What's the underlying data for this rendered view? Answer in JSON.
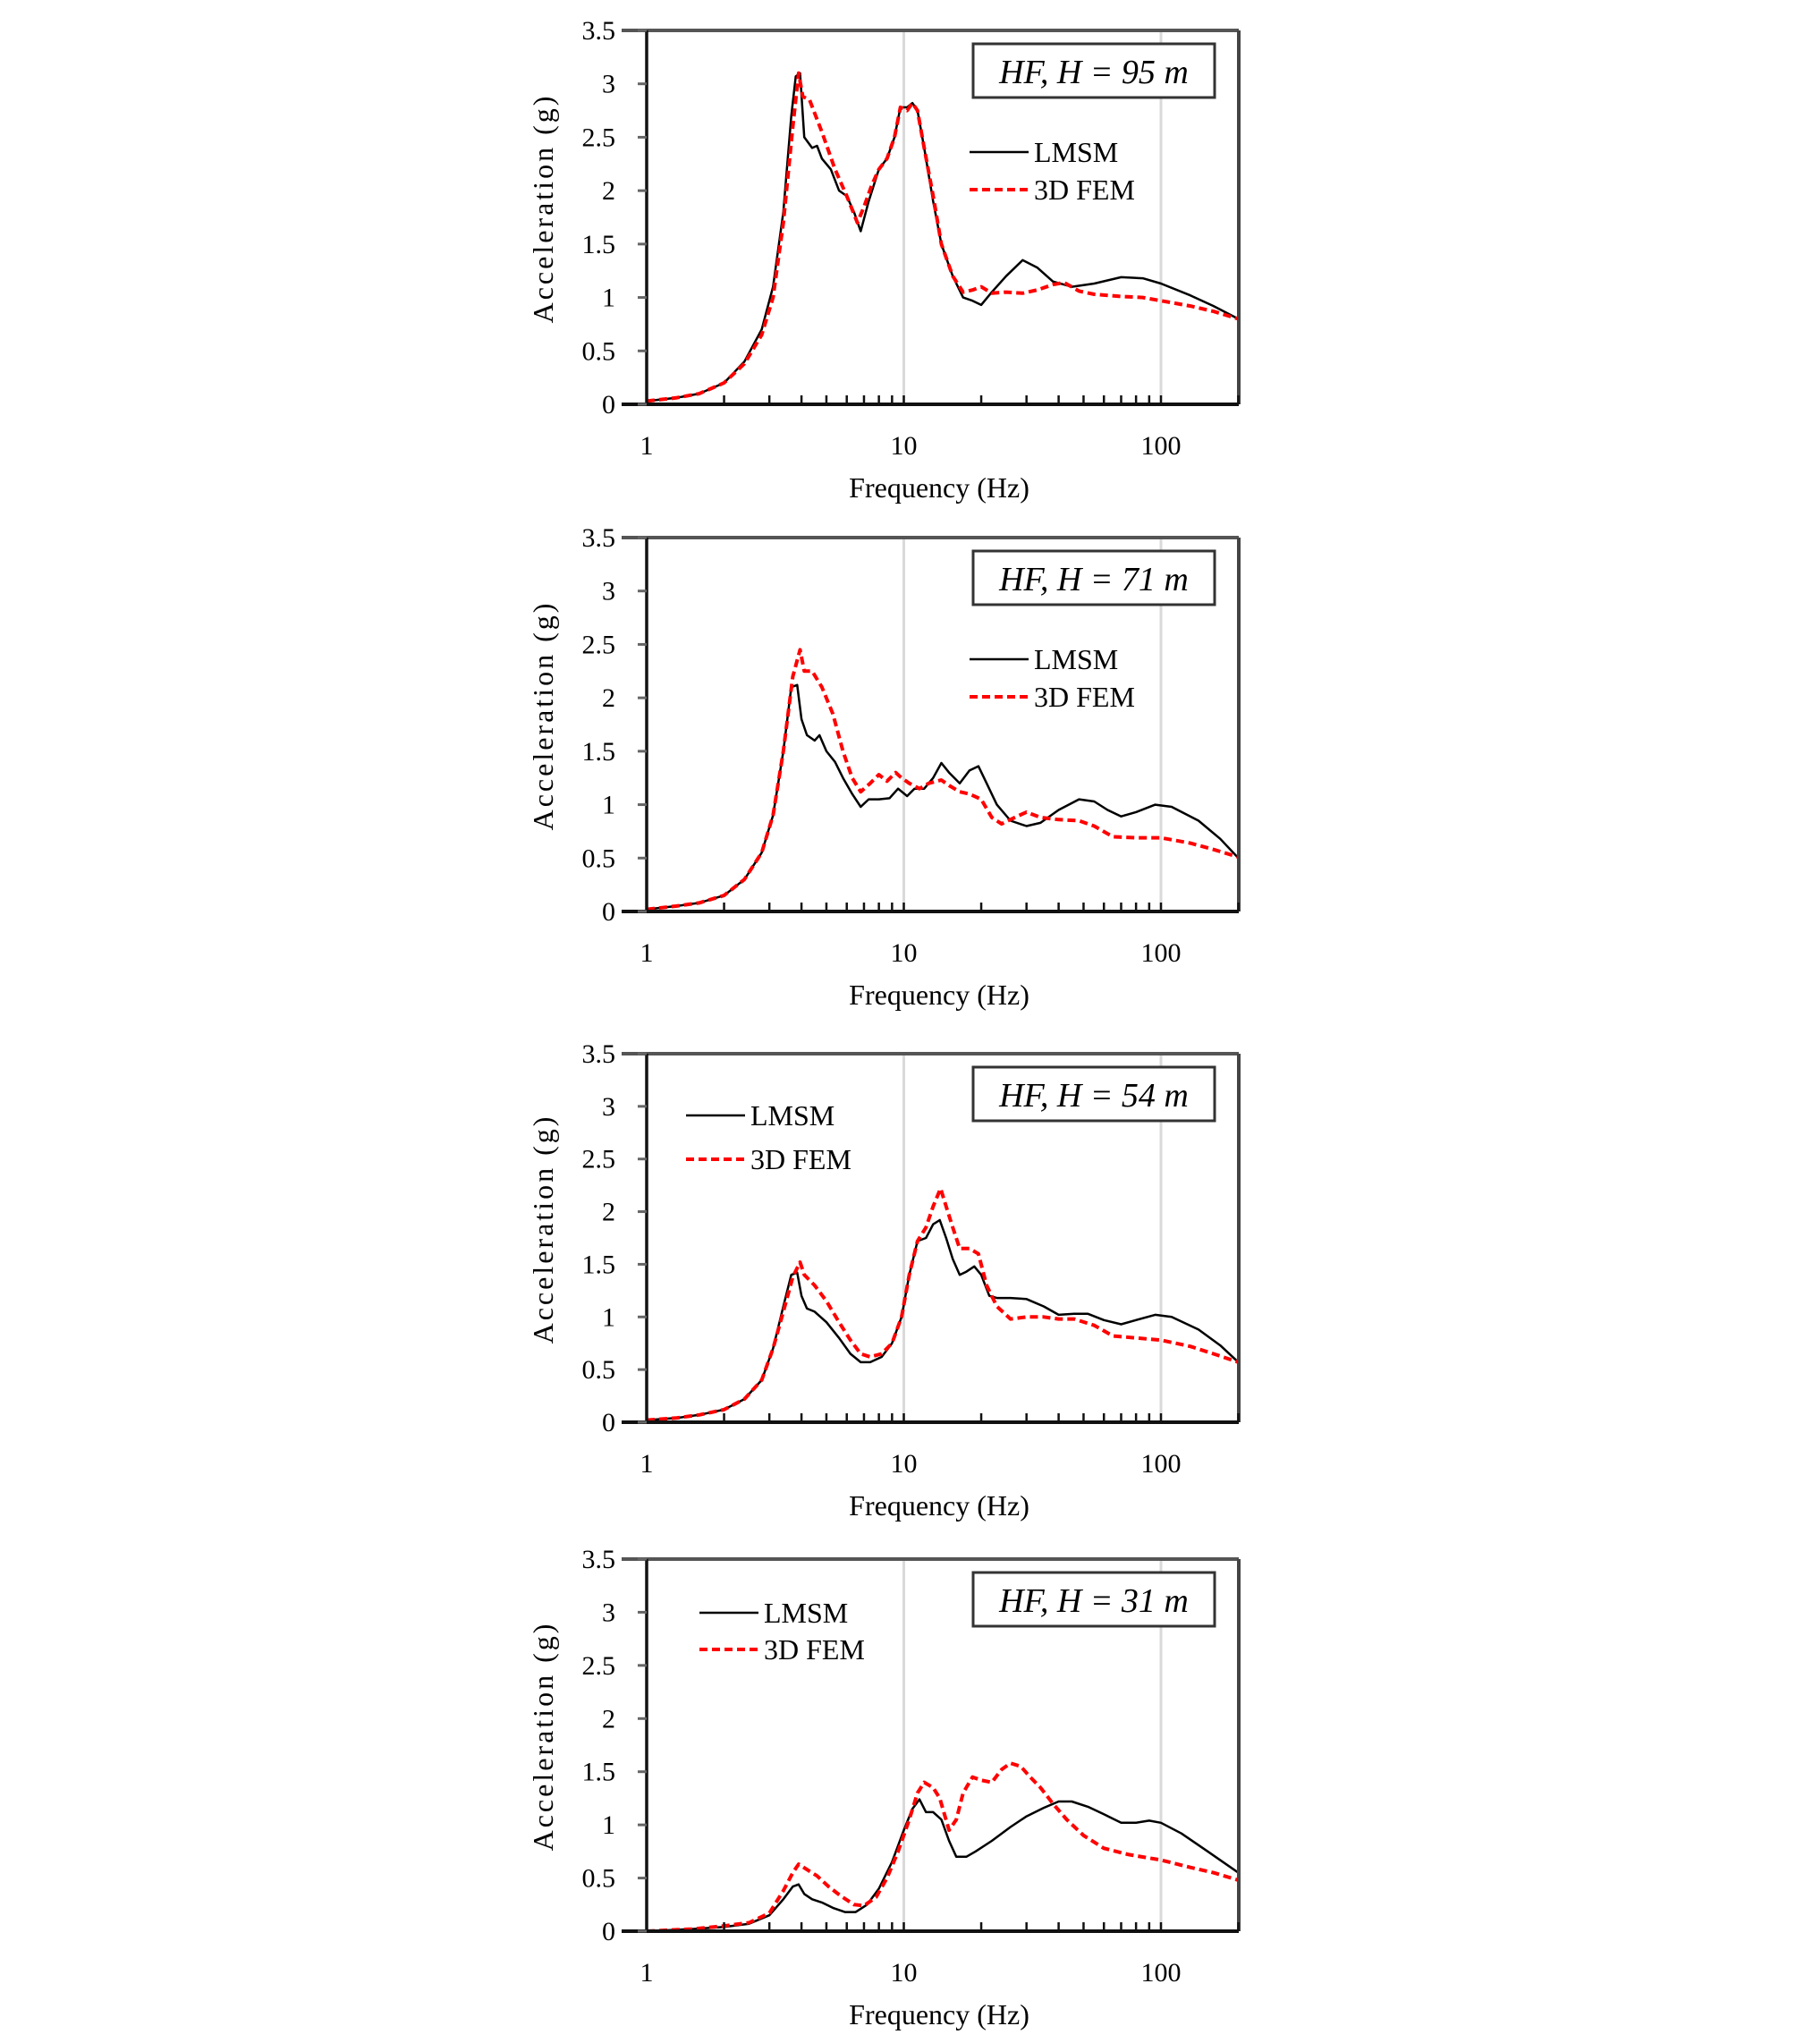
{
  "figure": {
    "panels_count": 4,
    "colors": {
      "lmsm": "#000000",
      "fem": "#ff0000",
      "frame": "#222222",
      "grid": "#d9d9d9"
    }
  },
  "chart_data": [
    {
      "type": "line",
      "title": "HF, H = 95 m",
      "xlabel": "Frequency (Hz)",
      "ylabel": "Acceleration (g)",
      "xscale": "log",
      "xlim": [
        1,
        200
      ],
      "ylim": [
        0,
        3.5
      ],
      "xticks": [
        "1",
        "10",
        "100"
      ],
      "yticks": [
        "0",
        "0.5",
        "1",
        "1.5",
        "2",
        "2.5",
        "3",
        "3.5"
      ],
      "grid": "vertical at decades",
      "legend": {
        "position": "upper right",
        "entries": [
          "LMSM",
          "3D FEM"
        ]
      },
      "series": [
        {
          "name": "LMSM",
          "style": "solid",
          "x": [
            1,
            1.3,
            1.6,
            2,
            2.4,
            2.8,
            3.1,
            3.4,
            3.65,
            3.8,
            3.95,
            4.1,
            4.4,
            4.6,
            4.8,
            5.2,
            5.6,
            6.0,
            6.4,
            6.8,
            7.3,
            8.0,
            8.6,
            9.2,
            9.7,
            10.3,
            10.8,
            11.3,
            12,
            13,
            14,
            15.5,
            17,
            18.5,
            20,
            22,
            25,
            29,
            33,
            38,
            45,
            55,
            70,
            85,
            100,
            130,
            160,
            200
          ],
          "y": [
            0.03,
            0.06,
            0.1,
            0.2,
            0.4,
            0.7,
            1.1,
            1.8,
            2.7,
            3.07,
            3.1,
            2.5,
            2.4,
            2.42,
            2.3,
            2.2,
            2.0,
            1.95,
            1.8,
            1.62,
            1.9,
            2.2,
            2.3,
            2.5,
            2.78,
            2.78,
            2.82,
            2.75,
            2.4,
            1.9,
            1.5,
            1.2,
            1.0,
            0.97,
            0.93,
            1.05,
            1.2,
            1.35,
            1.28,
            1.15,
            1.1,
            1.13,
            1.19,
            1.18,
            1.13,
            1.02,
            0.92,
            0.8
          ]
        },
        {
          "name": "3D FEM",
          "style": "dashed",
          "x": [
            1,
            1.3,
            1.6,
            2,
            2.4,
            2.8,
            3.1,
            3.4,
            3.7,
            3.9,
            4.05,
            4.3,
            4.8,
            5.4,
            6.0,
            6.6,
            7.0,
            7.5,
            8.0,
            8.6,
            9.2,
            9.7,
            10.3,
            10.8,
            11.3,
            12,
            13,
            14,
            15.5,
            17,
            18.5,
            20,
            22,
            25,
            29,
            33,
            38,
            42,
            48,
            55,
            70,
            85,
            100,
            130,
            160,
            200
          ],
          "y": [
            0.03,
            0.06,
            0.1,
            0.2,
            0.38,
            0.65,
            1.0,
            1.7,
            2.6,
            3.1,
            2.88,
            2.85,
            2.55,
            2.2,
            1.95,
            1.7,
            1.85,
            2.05,
            2.2,
            2.3,
            2.5,
            2.78,
            2.75,
            2.82,
            2.75,
            2.4,
            1.95,
            1.5,
            1.2,
            1.05,
            1.07,
            1.1,
            1.04,
            1.05,
            1.04,
            1.07,
            1.12,
            1.14,
            1.06,
            1.03,
            1.01,
            1.0,
            0.97,
            0.92,
            0.87,
            0.8
          ]
        }
      ]
    },
    {
      "type": "line",
      "title": "HF, H = 71 m",
      "xlabel": "Frequency (Hz)",
      "ylabel": "Acceleration (g)",
      "xscale": "log",
      "xlim": [
        1,
        200
      ],
      "ylim": [
        0,
        3.5
      ],
      "xticks": [
        "1",
        "10",
        "100"
      ],
      "yticks": [
        "0",
        "0.5",
        "1",
        "1.5",
        "2",
        "2.5",
        "3",
        "3.5"
      ],
      "grid": "vertical at decades",
      "legend": {
        "position": "upper right",
        "entries": [
          "LMSM",
          "3D FEM"
        ]
      },
      "series": [
        {
          "name": "LMSM",
          "style": "solid",
          "x": [
            1,
            1.3,
            1.6,
            2,
            2.4,
            2.8,
            3.1,
            3.4,
            3.65,
            3.85,
            4.0,
            4.2,
            4.5,
            4.7,
            5.0,
            5.4,
            5.8,
            6.3,
            6.8,
            7.3,
            8.0,
            8.8,
            9.5,
            10.3,
            11,
            12,
            13,
            14,
            15,
            16.5,
            18,
            19.5,
            21,
            23,
            26,
            30,
            34,
            40,
            48,
            55,
            62,
            70,
            80,
            95,
            110,
            140,
            170,
            200
          ],
          "y": [
            0.02,
            0.05,
            0.08,
            0.15,
            0.3,
            0.55,
            0.9,
            1.5,
            2.1,
            2.12,
            1.8,
            1.65,
            1.6,
            1.65,
            1.5,
            1.4,
            1.25,
            1.1,
            0.98,
            1.05,
            1.05,
            1.06,
            1.15,
            1.08,
            1.15,
            1.15,
            1.25,
            1.39,
            1.3,
            1.2,
            1.32,
            1.36,
            1.2,
            1.0,
            0.85,
            0.8,
            0.83,
            0.95,
            1.05,
            1.03,
            0.95,
            0.89,
            0.93,
            1.0,
            0.98,
            0.85,
            0.68,
            0.5
          ]
        },
        {
          "name": "3D FEM",
          "style": "dashed",
          "x": [
            1,
            1.3,
            1.6,
            2,
            2.4,
            2.8,
            3.1,
            3.4,
            3.7,
            3.95,
            4.1,
            4.4,
            4.8,
            5.3,
            5.8,
            6.3,
            6.8,
            7.4,
            8.0,
            8.6,
            9.3,
            9.8,
            10.5,
            11.5,
            12.5,
            14,
            15,
            16.5,
            18,
            20,
            22,
            24,
            27,
            30,
            34,
            40,
            48,
            55,
            65,
            80,
            100,
            130,
            160,
            200
          ],
          "y": [
            0.02,
            0.05,
            0.08,
            0.15,
            0.3,
            0.55,
            0.9,
            1.5,
            2.2,
            2.45,
            2.25,
            2.25,
            2.1,
            1.85,
            1.5,
            1.25,
            1.12,
            1.2,
            1.28,
            1.22,
            1.3,
            1.25,
            1.2,
            1.15,
            1.2,
            1.23,
            1.18,
            1.12,
            1.1,
            1.05,
            0.88,
            0.82,
            0.88,
            0.93,
            0.88,
            0.86,
            0.85,
            0.8,
            0.7,
            0.69,
            0.69,
            0.64,
            0.58,
            0.51
          ]
        }
      ]
    },
    {
      "type": "line",
      "title": "HF, H = 54 m",
      "xlabel": "Frequency (Hz)",
      "ylabel": "Acceleration (g)",
      "xscale": "log",
      "xlim": [
        1,
        200
      ],
      "ylim": [
        0,
        3.5
      ],
      "xticks": [
        "1",
        "10",
        "100"
      ],
      "yticks": [
        "0",
        "0.5",
        "1",
        "1.5",
        "2",
        "2.5",
        "3",
        "3.5"
      ],
      "grid": "vertical at decades",
      "legend": {
        "position": "upper left",
        "entries": [
          "LMSM",
          "3D FEM"
        ]
      },
      "series": [
        {
          "name": "LMSM",
          "style": "solid",
          "x": [
            1,
            1.3,
            1.6,
            2,
            2.4,
            2.8,
            3.1,
            3.4,
            3.65,
            3.85,
            4.0,
            4.2,
            4.5,
            5.0,
            5.6,
            6.2,
            6.8,
            7.4,
            8.2,
            9.0,
            9.8,
            10.5,
            11.3,
            12.2,
            13,
            13.8,
            14.6,
            15.5,
            16.5,
            17.5,
            18.8,
            20,
            21.5,
            23,
            26,
            30,
            35,
            40,
            46,
            52,
            60,
            70,
            80,
            95,
            110,
            140,
            170,
            200
          ],
          "y": [
            0.02,
            0.04,
            0.07,
            0.12,
            0.22,
            0.4,
            0.7,
            1.1,
            1.4,
            1.42,
            1.2,
            1.08,
            1.05,
            0.95,
            0.8,
            0.65,
            0.57,
            0.57,
            0.62,
            0.75,
            1.0,
            1.4,
            1.72,
            1.75,
            1.88,
            1.92,
            1.75,
            1.55,
            1.4,
            1.43,
            1.48,
            1.4,
            1.2,
            1.18,
            1.18,
            1.17,
            1.1,
            1.02,
            1.03,
            1.03,
            0.97,
            0.93,
            0.97,
            1.02,
            1.0,
            0.88,
            0.73,
            0.57
          ]
        },
        {
          "name": "3D FEM",
          "style": "dashed",
          "x": [
            1,
            1.3,
            1.6,
            2,
            2.4,
            2.8,
            3.1,
            3.4,
            3.7,
            3.95,
            4.1,
            4.5,
            5.0,
            5.6,
            6.2,
            6.8,
            7.4,
            8.2,
            9.0,
            9.8,
            10.5,
            11.3,
            12.2,
            13,
            13.9,
            14.6,
            15.5,
            16.5,
            18,
            19.5,
            21,
            23,
            26,
            30,
            35,
            40,
            46,
            55,
            65,
            80,
            100,
            130,
            160,
            200
          ],
          "y": [
            0.02,
            0.04,
            0.07,
            0.12,
            0.22,
            0.4,
            0.7,
            1.05,
            1.38,
            1.52,
            1.4,
            1.3,
            1.15,
            0.95,
            0.78,
            0.65,
            0.62,
            0.65,
            0.75,
            1.0,
            1.4,
            1.72,
            1.85,
            2.05,
            2.22,
            2.05,
            1.85,
            1.65,
            1.65,
            1.6,
            1.3,
            1.1,
            0.98,
            1.0,
            1.0,
            0.98,
            0.98,
            0.92,
            0.82,
            0.8,
            0.78,
            0.72,
            0.65,
            0.57
          ]
        }
      ]
    },
    {
      "type": "line",
      "title": "HF, H = 31 m",
      "xlabel": "Frequency (Hz)",
      "ylabel": "Acceleration (g)",
      "xscale": "log",
      "xlim": [
        1,
        200
      ],
      "ylim": [
        0,
        3.5
      ],
      "xticks": [
        "1",
        "10",
        "100"
      ],
      "yticks": [
        "0",
        "0.5",
        "1",
        "1.5",
        "2",
        "2.5",
        "3",
        "3.5"
      ],
      "grid": "vertical at decades",
      "legend": {
        "position": "upper left",
        "entries": [
          "LMSM",
          "3D FEM"
        ]
      },
      "series": [
        {
          "name": "LMSM",
          "style": "solid",
          "x": [
            1,
            1.5,
            2,
            2.5,
            3.0,
            3.4,
            3.7,
            3.9,
            4.1,
            4.4,
            4.8,
            5.3,
            5.9,
            6.5,
            7.2,
            8.0,
            9.0,
            10,
            10.8,
            11.5,
            12.2,
            13,
            14,
            15,
            16,
            17.5,
            19,
            22,
            26,
            30,
            35,
            40,
            45,
            52,
            60,
            70,
            80,
            90,
            100,
            120,
            150,
            200
          ],
          "y": [
            0.0,
            0.02,
            0.04,
            0.07,
            0.15,
            0.3,
            0.42,
            0.44,
            0.35,
            0.3,
            0.27,
            0.22,
            0.18,
            0.18,
            0.25,
            0.4,
            0.65,
            0.95,
            1.15,
            1.24,
            1.12,
            1.12,
            1.05,
            0.85,
            0.7,
            0.7,
            0.75,
            0.85,
            0.98,
            1.08,
            1.16,
            1.22,
            1.22,
            1.17,
            1.1,
            1.02,
            1.02,
            1.04,
            1.02,
            0.92,
            0.76,
            0.55
          ]
        },
        {
          "name": "3D FEM",
          "style": "dashed",
          "x": [
            1,
            1.5,
            2,
            2.5,
            3.0,
            3.4,
            3.7,
            3.9,
            4.2,
            4.6,
            5.1,
            5.7,
            6.4,
            7.0,
            7.8,
            8.6,
            9.5,
            10.5,
            11.3,
            12,
            13,
            13.8,
            15,
            16,
            17,
            18.5,
            20,
            22,
            24,
            26,
            28.5,
            31,
            34,
            38,
            43,
            50,
            60,
            75,
            100,
            130,
            160,
            200
          ],
          "y": [
            0.0,
            0.02,
            0.05,
            0.08,
            0.17,
            0.38,
            0.55,
            0.63,
            0.58,
            0.52,
            0.42,
            0.33,
            0.25,
            0.24,
            0.32,
            0.5,
            0.75,
            1.05,
            1.3,
            1.4,
            1.35,
            1.25,
            0.95,
            1.05,
            1.3,
            1.45,
            1.42,
            1.4,
            1.52,
            1.58,
            1.55,
            1.45,
            1.35,
            1.2,
            1.05,
            0.9,
            0.78,
            0.72,
            0.67,
            0.6,
            0.55,
            0.48
          ]
        }
      ]
    }
  ],
  "panels": [
    {
      "label": "HF, H = 95 m",
      "legend_lmsm": "LMSM",
      "legend_fem": "3D FEM",
      "ylabel": "Acceleration (g)",
      "xlabel": "Frequency (Hz)",
      "xticks": [
        "1",
        "10",
        "100"
      ],
      "yticks": [
        "0",
        "0.5",
        "1",
        "1.5",
        "2",
        "2.5",
        "3",
        "3.5"
      ]
    },
    {
      "label": "HF, H = 71 m",
      "legend_lmsm": "LMSM",
      "legend_fem": "3D FEM",
      "ylabel": "Acceleration (g)",
      "xlabel": "Frequency (Hz)",
      "xticks": [
        "1",
        "10",
        "100"
      ],
      "yticks": [
        "0",
        "0.5",
        "1",
        "1.5",
        "2",
        "2.5",
        "3",
        "3.5"
      ]
    },
    {
      "label": "HF, H = 54 m",
      "legend_lmsm": "LMSM",
      "legend_fem": "3D FEM",
      "ylabel": "Acceleration (g)",
      "xlabel": "Frequency (Hz)",
      "xticks": [
        "1",
        "10",
        "100"
      ],
      "yticks": [
        "0",
        "0.5",
        "1",
        "1.5",
        "2",
        "2.5",
        "3",
        "3.5"
      ]
    },
    {
      "label": "HF, H = 31 m",
      "legend_lmsm": "LMSM",
      "legend_fem": "3D FEM",
      "ylabel": "Acceleration (g)",
      "xlabel": "Frequency (Hz)",
      "xticks": [
        "1",
        "10",
        "100"
      ],
      "yticks": [
        "0",
        "0.5",
        "1",
        "1.5",
        "2",
        "2.5",
        "3",
        "3.5"
      ]
    }
  ]
}
